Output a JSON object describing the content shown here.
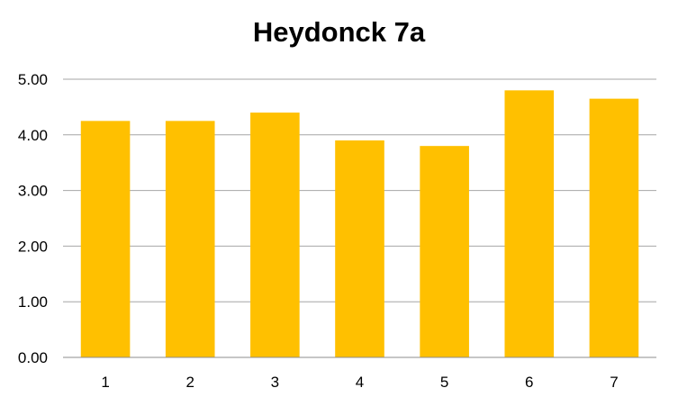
{
  "chart_data": {
    "type": "bar",
    "title": "Heydonck 7a",
    "xlabel": "",
    "ylabel": "",
    "categories": [
      "1",
      "2",
      "3",
      "4",
      "5",
      "6",
      "7"
    ],
    "values": [
      4.25,
      4.25,
      4.4,
      3.9,
      3.8,
      4.8,
      4.65
    ],
    "ylim": [
      0,
      5
    ],
    "yticks": [
      "0.00",
      "1.00",
      "2.00",
      "3.00",
      "4.00",
      "5.00"
    ],
    "grid": true,
    "legend": "none",
    "bar_color": "#FFC000",
    "grid_color": "#A6A6A6",
    "axis_color": "#8C8C8C"
  }
}
